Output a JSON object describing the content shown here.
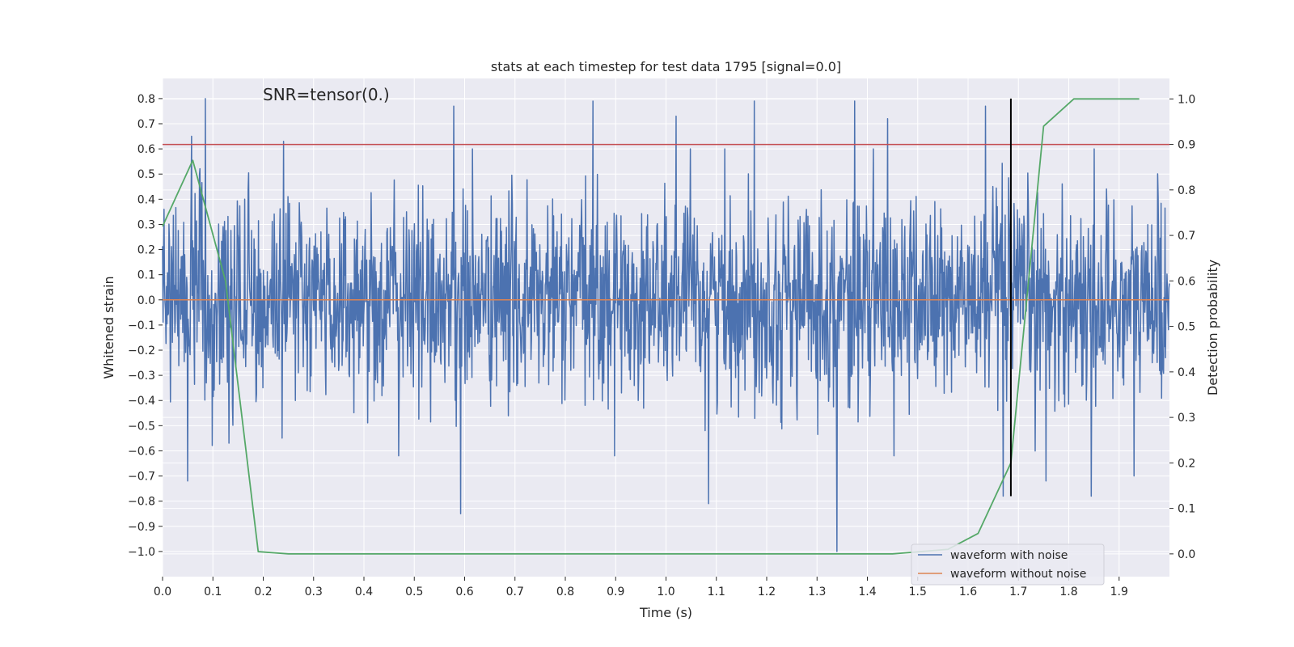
{
  "chart_data": {
    "type": "line",
    "title": "stats at each timestep for test data 1795 [signal=0.0]",
    "xlabel": "Time (s)",
    "ylabel": "Whitened strain",
    "ylabel_right": "Detection probability",
    "annotation": "SNR=tensor(0.)",
    "xlim": [
      0.0,
      2.0
    ],
    "ylim": [
      -1.1,
      0.88
    ],
    "ylim_right": [
      -0.05,
      1.045
    ],
    "xticks": [
      "0.0",
      "0.1",
      "0.2",
      "0.3",
      "0.4",
      "0.5",
      "0.6",
      "0.7",
      "0.8",
      "0.9",
      "1.0",
      "1.1",
      "1.2",
      "1.3",
      "1.4",
      "1.5",
      "1.6",
      "1.7",
      "1.8",
      "1.9"
    ],
    "yticks": [
      "0.8",
      "0.7",
      "0.6",
      "0.5",
      "0.4",
      "0.3",
      "0.2",
      "0.1",
      "0.0",
      "−0.1",
      "−0.2",
      "−0.3",
      "−0.4",
      "−0.5",
      "−0.6",
      "−0.7",
      "−0.8",
      "−0.9",
      "−1.0"
    ],
    "yticks_right": [
      "1.0",
      "0.9",
      "0.8",
      "0.7",
      "0.6",
      "0.5",
      "0.4",
      "0.3",
      "0.2",
      "0.1",
      "0.0"
    ],
    "grid": true,
    "legend_position": "lower-right",
    "series": [
      {
        "name": "waveform with noise",
        "color": "#4c72b0",
        "axis": "left",
        "generated": true,
        "samples": 2048,
        "amplitude_std": 0.2,
        "seed": 1795,
        "spikes": [
          {
            "x": 0.085,
            "y": 0.8
          },
          {
            "x": 0.05,
            "y": -0.72
          },
          {
            "x": 0.058,
            "y": 0.65
          },
          {
            "x": 0.24,
            "y": 0.63
          },
          {
            "x": 0.578,
            "y": 0.77
          },
          {
            "x": 0.592,
            "y": -0.85
          },
          {
            "x": 0.855,
            "y": 0.79
          },
          {
            "x": 1.02,
            "y": 0.73
          },
          {
            "x": 1.085,
            "y": -0.81
          },
          {
            "x": 1.175,
            "y": 0.79
          },
          {
            "x": 1.34,
            "y": -1.0
          },
          {
            "x": 1.375,
            "y": 0.79
          },
          {
            "x": 1.44,
            "y": 0.72
          },
          {
            "x": 1.635,
            "y": 0.77
          },
          {
            "x": 1.67,
            "y": -0.78
          },
          {
            "x": 1.755,
            "y": -0.72
          },
          {
            "x": 1.845,
            "y": -0.78
          },
          {
            "x": 1.93,
            "y": -0.7
          }
        ]
      },
      {
        "name": "waveform without noise",
        "color": "#dd8452",
        "axis": "left",
        "x": [
          0.0,
          2.0
        ],
        "y": [
          0.0,
          0.0
        ]
      },
      {
        "name": "",
        "color": "#55a868",
        "axis": "right",
        "x": [
          0.0,
          0.06,
          0.125,
          0.19,
          0.25,
          1.33,
          1.45,
          1.56,
          1.62,
          1.685,
          1.75,
          1.81,
          1.94
        ],
        "y": [
          0.72,
          0.865,
          0.6,
          0.005,
          0.0,
          0.0,
          0.0,
          0.01,
          0.045,
          0.2,
          0.94,
          1.0,
          1.0
        ]
      }
    ],
    "threshold": {
      "axis": "right",
      "value": 0.9,
      "color": "#c44e52"
    },
    "vline": {
      "x": 1.685,
      "color": "#000000",
      "ymin": -0.78,
      "ymax": 0.8
    }
  }
}
